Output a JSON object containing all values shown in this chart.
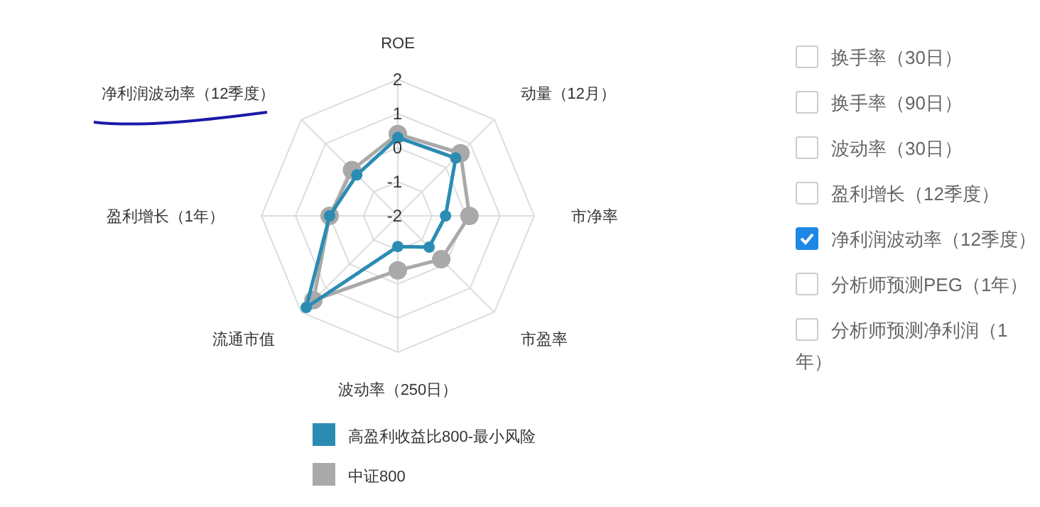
{
  "chart_data": {
    "type": "radar",
    "categories": [
      "ROE",
      "动量（12月）",
      "市净率",
      "市盈率",
      "波动率（250日）",
      "流通市值",
      "盈利增长（1年）",
      "净利润波动率（12季度）"
    ],
    "series": [
      {
        "name": "高盈利收益比800-最小风险",
        "color": "#2b8cb3",
        "values": [
          0.3,
          0.4,
          -0.6,
          -0.7,
          -1.1,
          1.8,
          0.0,
          -0.3
        ]
      },
      {
        "name": "中证800",
        "color": "#a9a9a9",
        "values": [
          0.4,
          0.6,
          0.1,
          -0.2,
          -0.4,
          1.5,
          0.0,
          -0.1
        ]
      }
    ],
    "ylim": [
      -2,
      2
    ],
    "yticks": [
      -2,
      -1,
      0,
      1,
      2
    ],
    "grid": true,
    "legend": "bottom",
    "marker": "circle",
    "annotations": [
      "换手率（30日）",
      "换手率（90日）",
      "波动率（30日）",
      "盈利增长（12季度）",
      "净利润波动率（12季度）",
      "分析师预测PEG（1年）",
      "分析师预测净利润（1年）"
    ]
  }
}
